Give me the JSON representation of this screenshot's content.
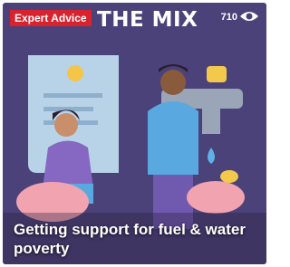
{
  "badge": "Expert Advice",
  "logo": "THE MIX",
  "views": 710,
  "title": "Getting support for fuel & water poverty"
}
